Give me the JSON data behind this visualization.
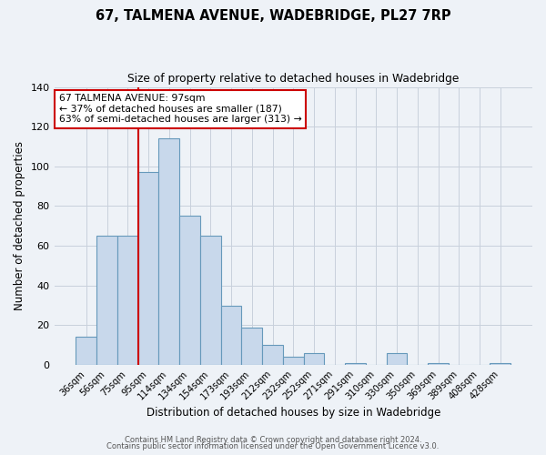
{
  "title": "67, TALMENA AVENUE, WADEBRIDGE, PL27 7RP",
  "subtitle": "Size of property relative to detached houses in Wadebridge",
  "xlabel": "Distribution of detached houses by size in Wadebridge",
  "ylabel": "Number of detached properties",
  "bar_labels": [
    "36sqm",
    "56sqm",
    "75sqm",
    "95sqm",
    "114sqm",
    "134sqm",
    "154sqm",
    "173sqm",
    "193sqm",
    "212sqm",
    "232sqm",
    "252sqm",
    "271sqm",
    "291sqm",
    "310sqm",
    "330sqm",
    "350sqm",
    "369sqm",
    "389sqm",
    "408sqm",
    "428sqm"
  ],
  "bar_values": [
    14,
    65,
    65,
    97,
    114,
    75,
    65,
    30,
    19,
    10,
    4,
    6,
    0,
    1,
    0,
    6,
    0,
    1,
    0,
    0,
    1
  ],
  "bar_color": "#c8d8eb",
  "bar_edge_color": "#6699bb",
  "annotation_box_text": "67 TALMENA AVENUE: 97sqm\n← 37% of detached houses are smaller (187)\n63% of semi-detached houses are larger (313) →",
  "annotation_box_color": "#ffffff",
  "annotation_box_edge_color": "#cc0000",
  "vline_x": 2.5,
  "vline_color": "#cc0000",
  "ylim": [
    0,
    140
  ],
  "yticks": [
    0,
    20,
    40,
    60,
    80,
    100,
    120,
    140
  ],
  "footer_line1": "Contains HM Land Registry data © Crown copyright and database right 2024.",
  "footer_line2": "Contains public sector information licensed under the Open Government Licence v3.0.",
  "background_color": "#eef2f7",
  "plot_background_color": "#eef2f7",
  "grid_color": "#c8d0dc"
}
